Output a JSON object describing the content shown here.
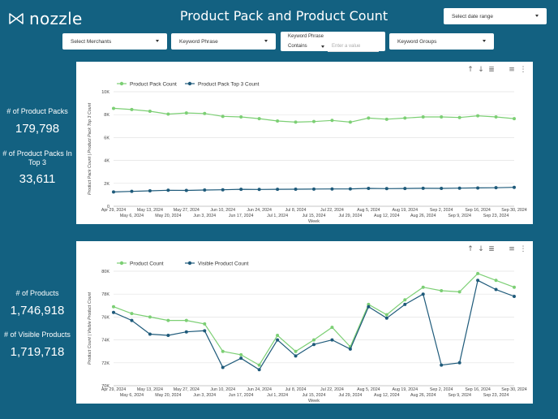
{
  "header": {
    "logo_text": "nozzle",
    "title": "Product Pack and Product Count",
    "date_range_label": "Select date range"
  },
  "filters": {
    "merchants_label": "Select Merchants",
    "keyword_phrase_label": "Keyword Phrase",
    "keyword_phrase2_label": "Keyword Phrase",
    "keyword_operator": "Contains",
    "keyword_placeholder": "Enter a value",
    "keyword_groups_label": "Keyword Groups"
  },
  "stats": {
    "packs_label": "# of Product Packs",
    "packs_value": "179,798",
    "packs_top3_label": "# of Product Packs In Top 3",
    "packs_top3_value": "33,611",
    "products_label": "# of Products",
    "products_value": "1,746,918",
    "visible_label": "# of Visible Products",
    "visible_value": "1,719,718"
  },
  "colors": {
    "bg": "#136181",
    "green": "#7ccf74",
    "navy": "#1e5a7a"
  },
  "chart_data": [
    {
      "type": "line",
      "ylabel": "Product Pack Count | Product Pack Top 3 Count",
      "xlabel": "Week",
      "ylim": [
        0,
        10000
      ],
      "yticks": [
        "0",
        "2K",
        "4K",
        "6K",
        "8K",
        "10K"
      ],
      "grid": true,
      "legend": "top-left",
      "categories": [
        "Apr 29, 2024",
        "May 6, 2024",
        "May 13, 2024",
        "May 20, 2024",
        "May 27, 2024",
        "Jun 3, 2024",
        "Jun 10, 2024",
        "Jun 17, 2024",
        "Jun 24, 2024",
        "Jul 1, 2024",
        "Jul 8, 2024",
        "Jul 15, 2024",
        "Jul 22, 2024",
        "Jul 29, 2024",
        "Aug 5, 2024",
        "Aug 12, 2024",
        "Aug 19, 2024",
        "Aug 26, 2024",
        "Sep 2, 2024",
        "Sep 9, 2024",
        "Sep 16, 2024",
        "Sep 23, 2024",
        "Sep 30, 2024"
      ],
      "series": [
        {
          "name": "Product Pack Count",
          "color": "#7ccf74",
          "values": [
            8550,
            8450,
            8300,
            8050,
            8150,
            8100,
            7850,
            7800,
            7650,
            7450,
            7350,
            7400,
            7500,
            7350,
            7700,
            7600,
            7700,
            7800,
            7800,
            7750,
            7900,
            7800,
            7650
          ]
        },
        {
          "name": "Product Pack Top 3 Count",
          "color": "#1e5a7a",
          "values": [
            1250,
            1300,
            1350,
            1400,
            1380,
            1420,
            1440,
            1480,
            1470,
            1480,
            1490,
            1500,
            1510,
            1520,
            1560,
            1540,
            1550,
            1570,
            1560,
            1580,
            1600,
            1620,
            1650
          ]
        }
      ]
    },
    {
      "type": "line",
      "ylabel": "Product Count | Visible Product Count",
      "xlabel": "Week",
      "ylim": [
        70000,
        80000
      ],
      "yticks": [
        "70K",
        "72K",
        "74K",
        "76K",
        "78K",
        "80K"
      ],
      "grid": true,
      "legend": "top-left",
      "categories": [
        "Apr 29, 2024",
        "May 6, 2024",
        "May 13, 2024",
        "May 20, 2024",
        "May 27, 2024",
        "Jun 3, 2024",
        "Jun 10, 2024",
        "Jun 17, 2024",
        "Jun 24, 2024",
        "Jul 1, 2024",
        "Jul 8, 2024",
        "Jul 15, 2024",
        "Jul 22, 2024",
        "Jul 29, 2024",
        "Aug 5, 2024",
        "Aug 12, 2024",
        "Aug 19, 2024",
        "Aug 26, 2024",
        "Sep 2, 2024",
        "Sep 9, 2024",
        "Sep 16, 2024",
        "Sep 23, 2024",
        "Sep 30, 2024"
      ],
      "series": [
        {
          "name": "Product Count",
          "color": "#7ccf74",
          "values": [
            76900,
            76300,
            76000,
            75700,
            75700,
            75400,
            73000,
            72700,
            71800,
            74400,
            73000,
            74000,
            75100,
            73400,
            77100,
            76200,
            77500,
            78600,
            78300,
            78200,
            79800,
            79200,
            78600
          ]
        },
        {
          "name": "Visible Product Count",
          "color": "#1e5a7a",
          "values": [
            76400,
            75700,
            74500,
            74400,
            74700,
            74800,
            71600,
            72400,
            71400,
            74000,
            72600,
            73600,
            74000,
            73200,
            76900,
            75900,
            77100,
            78000,
            71800,
            72000,
            79200,
            78400,
            77800
          ]
        }
      ]
    }
  ]
}
